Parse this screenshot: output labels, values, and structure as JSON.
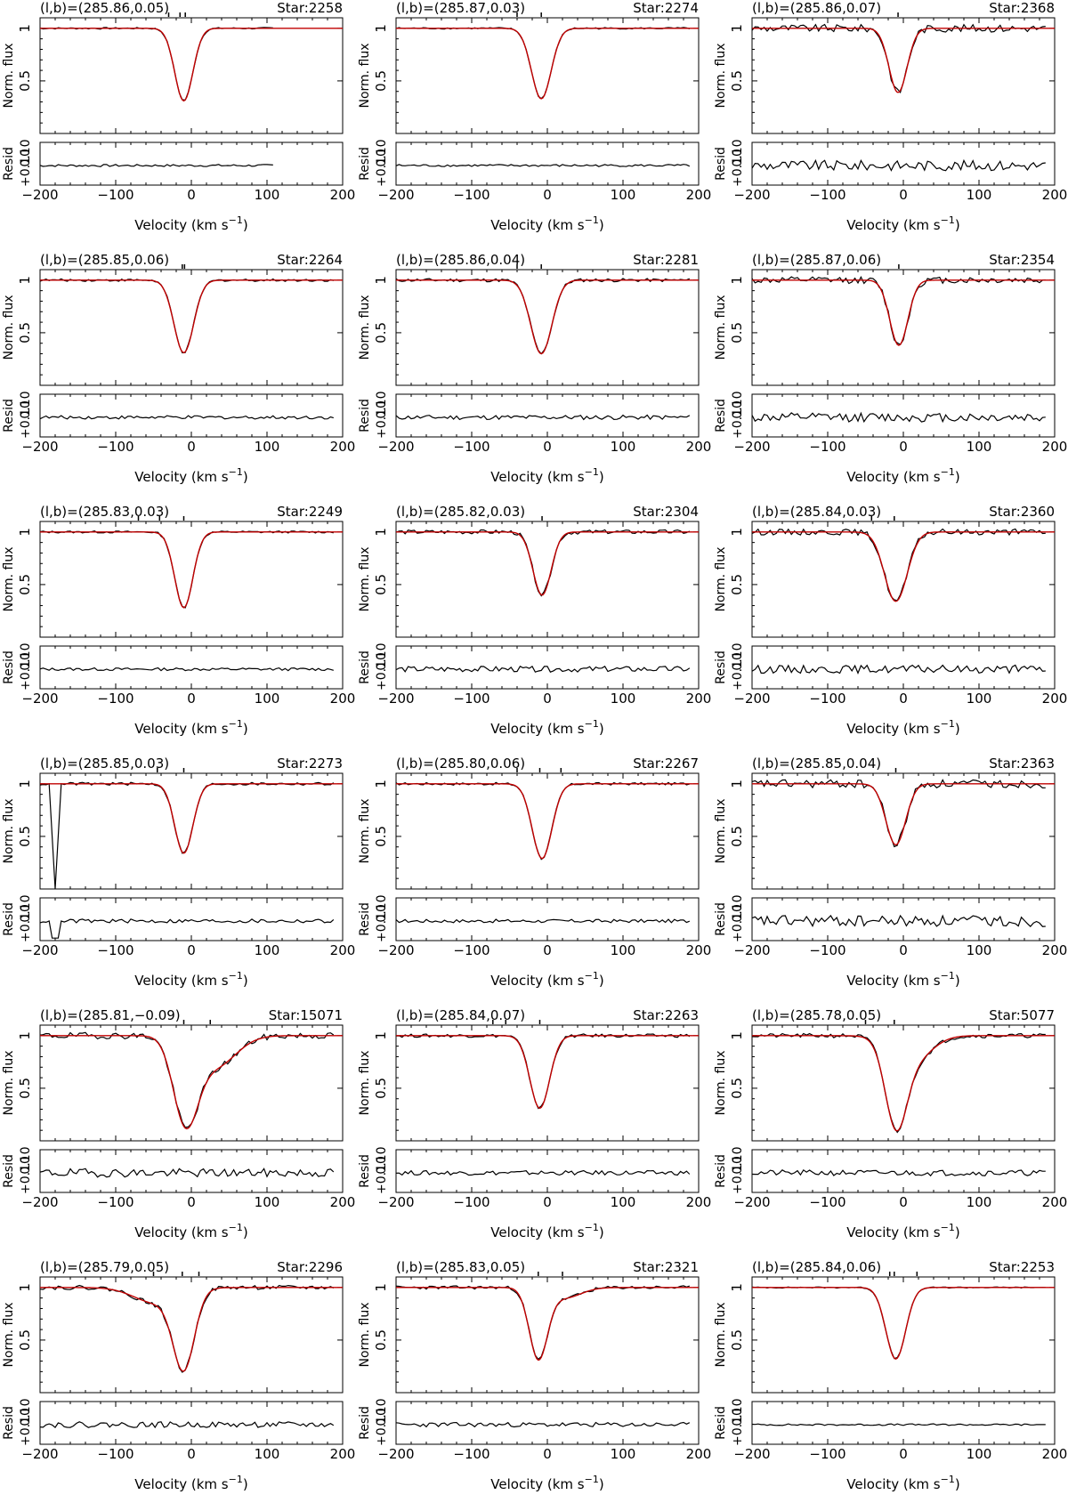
{
  "figure": {
    "labels": {
      "flux_axis": "Norm. flux",
      "resid_axis": "Resid",
      "x_axis_main": "Velocity (km s",
      "x_axis_sup": "−1",
      "x_axis_close": ")"
    },
    "colors": {
      "data": "#000000",
      "model": "#c00000",
      "axis": "#000000"
    }
  },
  "chart_data": [
    {
      "type": "line",
      "coord": "(l,b)=(285.86,0.05)",
      "star": "Star:2258",
      "xlim": [
        -200,
        200
      ],
      "ylim": [
        0,
        1.1
      ],
      "x_ticks": [
        "−200",
        "−100",
        "0",
        "100",
        "200"
      ],
      "y_ticks": [
        "1",
        "0.5"
      ],
      "resid_ticks": [
        "+0.10",
        "0.10"
      ],
      "data_range": [
        -200,
        110
      ],
      "center": -10,
      "depth": 0.69,
      "width": 12,
      "noise": 0.004,
      "markers": [
        -30,
        -15,
        -8
      ],
      "series": [
        {
          "name": "data"
        },
        {
          "name": "model"
        }
      ]
    },
    {
      "type": "line",
      "coord": "(l,b)=(285.87,0.03)",
      "star": "Star:2274",
      "xlim": [
        -200,
        200
      ],
      "ylim": [
        0,
        1.1
      ],
      "x_ticks": [
        "−200",
        "−100",
        "0",
        "100",
        "200"
      ],
      "y_ticks": [
        "1",
        "0.5"
      ],
      "resid_ticks": [
        "+0.10",
        "0.10"
      ],
      "data_range": [
        -200,
        190
      ],
      "center": -8,
      "depth": 0.67,
      "width": 13,
      "noise": 0.004,
      "markers": [
        -40,
        -8
      ],
      "series": [
        {
          "name": "data"
        },
        {
          "name": "model"
        }
      ]
    },
    {
      "type": "line",
      "coord": "(l,b)=(285.86,0.07)",
      "star": "Star:2368",
      "xlim": [
        -200,
        200
      ],
      "ylim": [
        0,
        1.1
      ],
      "x_ticks": [
        "−200",
        "−100",
        "0",
        "100",
        "200"
      ],
      "y_ticks": [
        "1",
        "0.5"
      ],
      "resid_ticks": [
        "+0.10",
        "0.10"
      ],
      "data_range": [
        -200,
        190
      ],
      "center": -7,
      "depth": 0.61,
      "width": 12,
      "noise": 0.018,
      "markers": [
        -7
      ],
      "series": [
        {
          "name": "data"
        },
        {
          "name": "model"
        }
      ]
    },
    {
      "type": "line",
      "coord": "(l,b)=(285.85,0.06)",
      "star": "Star:2264",
      "xlim": [
        -200,
        200
      ],
      "ylim": [
        0,
        1.1
      ],
      "x_ticks": [
        "−200",
        "−100",
        "0",
        "100",
        "200"
      ],
      "y_ticks": [
        "1",
        "0.5"
      ],
      "resid_ticks": [
        "+0.10",
        "0.10"
      ],
      "data_range": [
        -200,
        190
      ],
      "center": -10,
      "depth": 0.69,
      "width": 13,
      "noise": 0.006,
      "markers": [
        -12,
        -9
      ],
      "series": [
        {
          "name": "data"
        },
        {
          "name": "model"
        }
      ]
    },
    {
      "type": "line",
      "coord": "(l,b)=(285.86,0.04)",
      "star": "Star:2281",
      "xlim": [
        -200,
        200
      ],
      "ylim": [
        0,
        1.1
      ],
      "x_ticks": [
        "−200",
        "−100",
        "0",
        "100",
        "200"
      ],
      "y_ticks": [
        "1",
        "0.5"
      ],
      "resid_ticks": [
        "+0.10",
        "0.10"
      ],
      "data_range": [
        -200,
        190
      ],
      "center": -8,
      "depth": 0.7,
      "width": 14,
      "noise": 0.008,
      "markers": [
        -40,
        -8
      ],
      "series": [
        {
          "name": "data"
        },
        {
          "name": "model"
        }
      ]
    },
    {
      "type": "line",
      "coord": "(l,b)=(285.87,0.06)",
      "star": "Star:2354",
      "xlim": [
        -200,
        200
      ],
      "ylim": [
        0,
        1.1
      ],
      "x_ticks": [
        "−200",
        "−100",
        "0",
        "100",
        "200"
      ],
      "y_ticks": [
        "1",
        "0.5"
      ],
      "resid_ticks": [
        "+0.10",
        "0.10"
      ],
      "data_range": [
        -200,
        190
      ],
      "center": -6,
      "depth": 0.62,
      "width": 12,
      "noise": 0.016,
      "markers": [
        -6
      ],
      "series": [
        {
          "name": "data"
        },
        {
          "name": "model"
        }
      ]
    },
    {
      "type": "line",
      "coord": "(l,b)=(285.83,0.03)",
      "star": "Star:2249",
      "xlim": [
        -200,
        200
      ],
      "ylim": [
        0,
        1.1
      ],
      "x_ticks": [
        "−200",
        "−100",
        "0",
        "100",
        "200"
      ],
      "y_ticks": [
        "1",
        "0.5"
      ],
      "resid_ticks": [
        "+0.10",
        "0.10"
      ],
      "data_range": [
        -200,
        190
      ],
      "center": -10,
      "depth": 0.72,
      "width": 12,
      "noise": 0.005,
      "markers": [
        -70,
        -42,
        -10
      ],
      "series": [
        {
          "name": "data"
        },
        {
          "name": "model"
        }
      ]
    },
    {
      "type": "line",
      "coord": "(l,b)=(285.82,0.03)",
      "star": "Star:2304",
      "xlim": [
        -200,
        200
      ],
      "ylim": [
        0,
        1.1
      ],
      "x_ticks": [
        "−200",
        "−100",
        "0",
        "100",
        "200"
      ],
      "y_ticks": [
        "1",
        "0.5"
      ],
      "resid_ticks": [
        "+0.10",
        "0.10"
      ],
      "data_range": [
        -200,
        190
      ],
      "center": -7,
      "depth": 0.6,
      "width": 12,
      "noise": 0.01,
      "markers": [
        -7
      ],
      "series": [
        {
          "name": "data"
        },
        {
          "name": "model"
        }
      ]
    },
    {
      "type": "line",
      "coord": "(l,b)=(285.84,0.03)",
      "star": "Star:2360",
      "xlim": [
        -200,
        200
      ],
      "ylim": [
        0,
        1.1
      ],
      "x_ticks": [
        "−200",
        "−100",
        "0",
        "100",
        "200"
      ],
      "y_ticks": [
        "1",
        "0.5"
      ],
      "resid_ticks": [
        "+0.10",
        "0.10"
      ],
      "data_range": [
        -200,
        190
      ],
      "center": -10,
      "depth": 0.66,
      "width": 15,
      "noise": 0.014,
      "markers": [
        -42,
        -12
      ],
      "series": [
        {
          "name": "data"
        },
        {
          "name": "model"
        }
      ]
    },
    {
      "type": "line",
      "coord": "(l,b)=(285.85,0.03)",
      "star": "Star:2273",
      "xlim": [
        -200,
        200
      ],
      "ylim": [
        0,
        1.1
      ],
      "x_ticks": [
        "−200",
        "−100",
        "0",
        "100",
        "200"
      ],
      "y_ticks": [
        "1",
        "0.5"
      ],
      "resid_ticks": [
        "+0.10",
        "0.10"
      ],
      "data_range": [
        -200,
        190
      ],
      "center": -10,
      "depth": 0.66,
      "width": 12,
      "noise": 0.007,
      "markers": [
        -45,
        -10
      ],
      "spike": {
        "from": -188,
        "to": -172,
        "min": 0
      },
      "series": [
        {
          "name": "data"
        },
        {
          "name": "model"
        }
      ]
    },
    {
      "type": "line",
      "coord": "(l,b)=(285.80,0.06)",
      "star": "Star:2267",
      "xlim": [
        -200,
        200
      ],
      "ylim": [
        0,
        1.1
      ],
      "x_ticks": [
        "−200",
        "−100",
        "0",
        "100",
        "200"
      ],
      "y_ticks": [
        "1",
        "0.5"
      ],
      "resid_ticks": [
        "+0.10",
        "0.10"
      ],
      "data_range": [
        -200,
        190
      ],
      "center": -7,
      "depth": 0.71,
      "width": 13,
      "noise": 0.006,
      "markers": [
        -40,
        -10,
        18
      ],
      "series": [
        {
          "name": "data"
        },
        {
          "name": "model"
        }
      ]
    },
    {
      "type": "line",
      "coord": "(l,b)=(285.85,0.04)",
      "star": "Star:2363",
      "xlim": [
        -200,
        200
      ],
      "ylim": [
        0,
        1.1
      ],
      "x_ticks": [
        "−200",
        "−100",
        "0",
        "100",
        "200"
      ],
      "y_ticks": [
        "1",
        "0.5"
      ],
      "resid_ticks": [
        "+0.10",
        "0.10"
      ],
      "data_range": [
        -200,
        190
      ],
      "center": -10,
      "depth": 0.58,
      "width": 13,
      "noise": 0.02,
      "markers": [
        -10
      ],
      "series": [
        {
          "name": "data"
        },
        {
          "name": "model"
        }
      ]
    },
    {
      "type": "line",
      "coord": "(l,b)=(285.81,−0.09)",
      "star": "Star:15071",
      "xlim": [
        -200,
        200
      ],
      "ylim": [
        0,
        1.1
      ],
      "x_ticks": [
        "−200",
        "−100",
        "0",
        "100",
        "200"
      ],
      "y_ticks": [
        "1",
        "0.5"
      ],
      "resid_ticks": [
        "+0.10",
        "0.10"
      ],
      "data_range": [
        -200,
        190
      ],
      "center": -8,
      "depth": 0.76,
      "width": 16,
      "noise": 0.015,
      "markers": [
        -10,
        25
      ],
      "wing": {
        "center": 30,
        "depth": 0.3,
        "width": 28
      },
      "series": [
        {
          "name": "data"
        },
        {
          "name": "model"
        }
      ]
    },
    {
      "type": "line",
      "coord": "(l,b)=(285.84,0.07)",
      "star": "Star:2263",
      "xlim": [
        -200,
        200
      ],
      "ylim": [
        0,
        1.1
      ],
      "x_ticks": [
        "−200",
        "−100",
        "0",
        "100",
        "200"
      ],
      "y_ticks": [
        "1",
        "0.5"
      ],
      "resid_ticks": [
        "+0.10",
        "0.10"
      ],
      "data_range": [
        -200,
        190
      ],
      "center": -10,
      "depth": 0.69,
      "width": 13,
      "noise": 0.008,
      "markers": [
        -72,
        -55,
        -10
      ],
      "series": [
        {
          "name": "data"
        },
        {
          "name": "model"
        }
      ]
    },
    {
      "type": "line",
      "coord": "(l,b)=(285.78,0.05)",
      "star": "Star:5077",
      "xlim": [
        -200,
        200
      ],
      "ylim": [
        0,
        1.1
      ],
      "x_ticks": [
        "−200",
        "−100",
        "0",
        "100",
        "200"
      ],
      "y_ticks": [
        "1",
        "0.5"
      ],
      "resid_ticks": [
        "+0.10",
        "0.10"
      ],
      "data_range": [
        -200,
        190
      ],
      "center": -10,
      "depth": 0.72,
      "width": 14,
      "noise": 0.01,
      "markers": [
        -50,
        -12
      ],
      "wing": {
        "center": 10,
        "depth": 0.25,
        "width": 25
      },
      "series": [
        {
          "name": "data"
        },
        {
          "name": "model"
        }
      ]
    },
    {
      "type": "line",
      "coord": "(l,b)=(285.79,0.05)",
      "star": "Star:2296",
      "xlim": [
        -200,
        200
      ],
      "ylim": [
        0,
        1.1
      ],
      "x_ticks": [
        "−200",
        "−100",
        "0",
        "100",
        "200"
      ],
      "y_ticks": [
        "1",
        "0.5"
      ],
      "resid_ticks": [
        "+0.10",
        "0.10"
      ],
      "data_range": [
        -200,
        190
      ],
      "center": -10,
      "depth": 0.72,
      "width": 14,
      "noise": 0.01,
      "markers": [
        -50,
        -12,
        10
      ],
      "wing": {
        "center": -45,
        "depth": 0.15,
        "width": 30
      },
      "series": [
        {
          "name": "data"
        },
        {
          "name": "model"
        }
      ]
    },
    {
      "type": "line",
      "coord": "(l,b)=(285.83,0.05)",
      "star": "Star:2321",
      "xlim": [
        -200,
        200
      ],
      "ylim": [
        0,
        1.1
      ],
      "x_ticks": [
        "−200",
        "−100",
        "0",
        "100",
        "200"
      ],
      "y_ticks": [
        "1",
        "0.5"
      ],
      "resid_ticks": [
        "+0.10",
        "0.10"
      ],
      "data_range": [
        -200,
        190
      ],
      "center": -12,
      "depth": 0.66,
      "width": 12,
      "noise": 0.008,
      "markers": [
        -12,
        20
      ],
      "wing": {
        "center": 22,
        "depth": 0.1,
        "width": 22
      },
      "series": [
        {
          "name": "data"
        },
        {
          "name": "model"
        }
      ]
    },
    {
      "type": "line",
      "coord": "(l,b)=(285.84,0.06)",
      "star": "Star:2253",
      "xlim": [
        -200,
        200
      ],
      "ylim": [
        0,
        1.1
      ],
      "x_ticks": [
        "−200",
        "−100",
        "0",
        "100",
        "200"
      ],
      "y_ticks": [
        "1",
        "0.5"
      ],
      "resid_ticks": [
        "+0.10",
        "0.10"
      ],
      "data_range": [
        -200,
        190
      ],
      "center": -10,
      "depth": 0.68,
      "width": 13,
      "noise": 0.003,
      "markers": [
        -18,
        -12,
        18
      ],
      "series": [
        {
          "name": "data"
        },
        {
          "name": "model"
        }
      ]
    }
  ]
}
